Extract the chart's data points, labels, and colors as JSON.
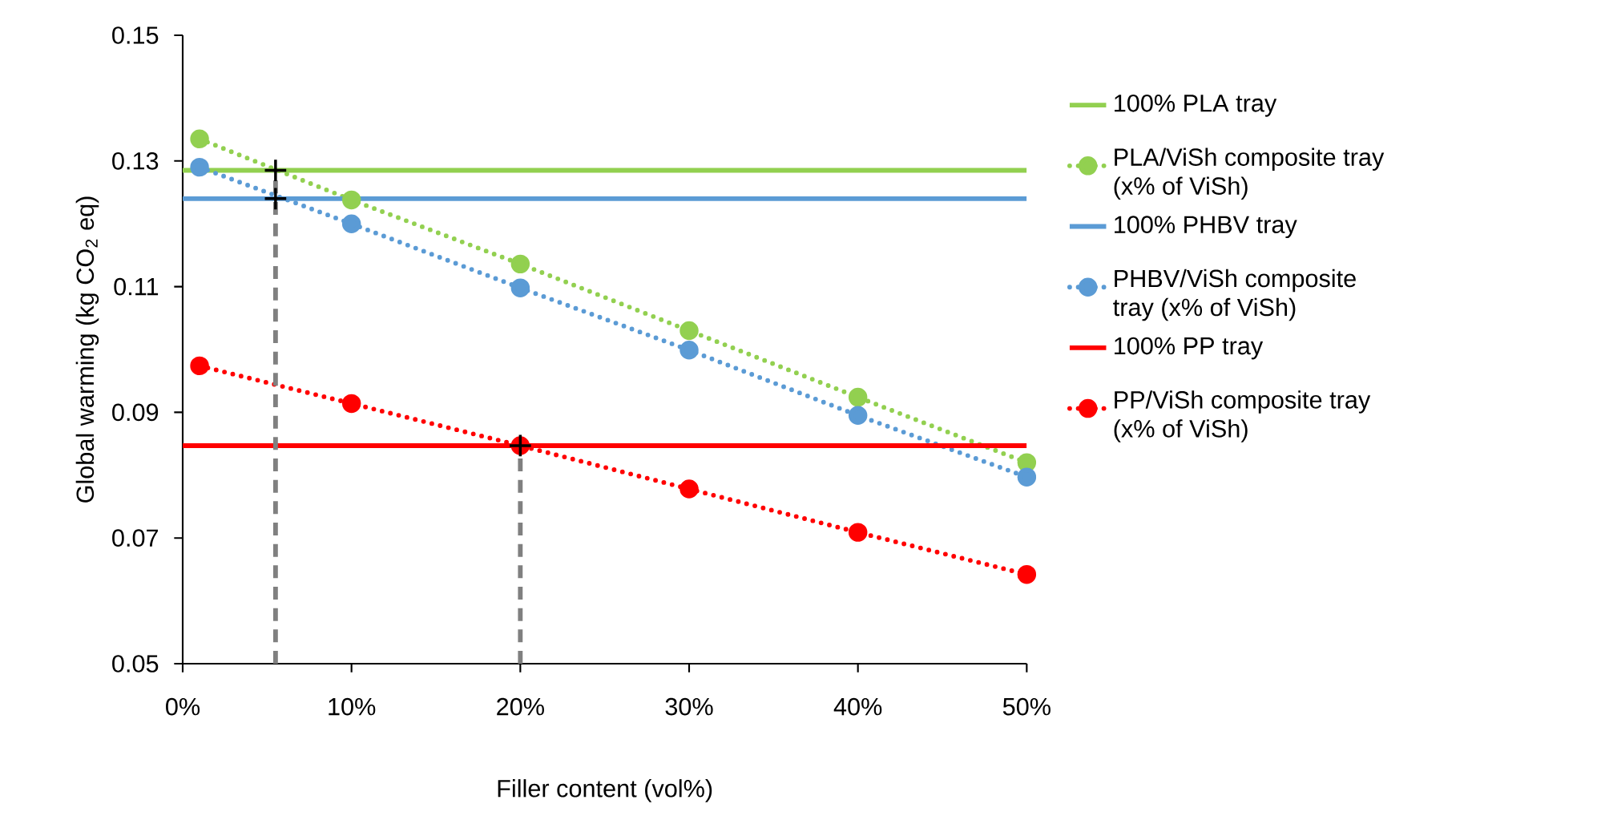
{
  "chart_data": {
    "type": "line",
    "xlabel": "Filler content (vol%)",
    "ylabel": "Global warming (kg CO$_{2}$ eq)",
    "x": [
      1,
      10,
      20,
      30,
      40,
      50
    ],
    "xlim": [
      0,
      50
    ],
    "xticks": [
      {
        "value": 0,
        "label": "0%"
      },
      {
        "value": 10,
        "label": "10%"
      },
      {
        "value": 20,
        "label": "20%"
      },
      {
        "value": 30,
        "label": "30%"
      },
      {
        "value": 40,
        "label": "40%"
      },
      {
        "value": 50,
        "label": "50%"
      }
    ],
    "ylim": [
      0.05,
      0.15
    ],
    "yticks": [
      0.05,
      0.07,
      0.09,
      0.11,
      0.13,
      0.15
    ],
    "grid": false,
    "legend": "right",
    "series": [
      {
        "name": "100% PLA tray",
        "color": "#92d050",
        "type": "line",
        "x": [
          0,
          50
        ],
        "values": [
          0.1285,
          0.1285
        ],
        "marker": "none",
        "line_style": "solid"
      },
      {
        "name": "PLA/ViSh composite tray (x% of ViSh)",
        "color": "#92d050",
        "type": "line",
        "values": [
          0.1335,
          0.1238,
          0.1136,
          0.103,
          0.0924,
          0.082
        ],
        "marker": "circle",
        "line_style": "dotted"
      },
      {
        "name": "100% PHBV tray",
        "color": "#5b9bd5",
        "type": "line",
        "x": [
          0,
          50
        ],
        "values": [
          0.124,
          0.124
        ],
        "marker": "none",
        "line_style": "solid"
      },
      {
        "name": "PHBV/ViSh composite tray (x% of ViSh)",
        "color": "#5b9bd5",
        "type": "line",
        "values": [
          0.129,
          0.12,
          0.1098,
          0.0999,
          0.0895,
          0.0797
        ],
        "marker": "circle",
        "line_style": "dotted"
      },
      {
        "name": "100% PP tray",
        "color": "#ff0000",
        "type": "line",
        "x": [
          0,
          50
        ],
        "values": [
          0.0847,
          0.0847
        ],
        "marker": "none",
        "line_style": "solid"
      },
      {
        "name": "PP/ViSh composite tray (x% of ViSh)",
        "color": "#ff0000",
        "type": "line",
        "values": [
          0.0974,
          0.0914,
          0.0847,
          0.0778,
          0.0709,
          0.0642
        ],
        "marker": "circle",
        "line_style": "dotted"
      },
      {
        "color": "#808080",
        "type": "line",
        "x": [
          5.5,
          5.5
        ],
        "values": [
          0.05,
          0.1285
        ],
        "marker": "none",
        "line_style": "dashed"
      },
      {
        "color": "#808080",
        "type": "line",
        "x": [
          20,
          20
        ],
        "values": [
          0.05,
          0.0847
        ],
        "marker": "none",
        "line_style": "dashed"
      },
      {
        "color": "#000000",
        "type": "scatter",
        "x": [
          5.5,
          5.5,
          20
        ],
        "values": [
          0.1285,
          0.124,
          0.0847
        ],
        "marker": "cross"
      }
    ]
  }
}
